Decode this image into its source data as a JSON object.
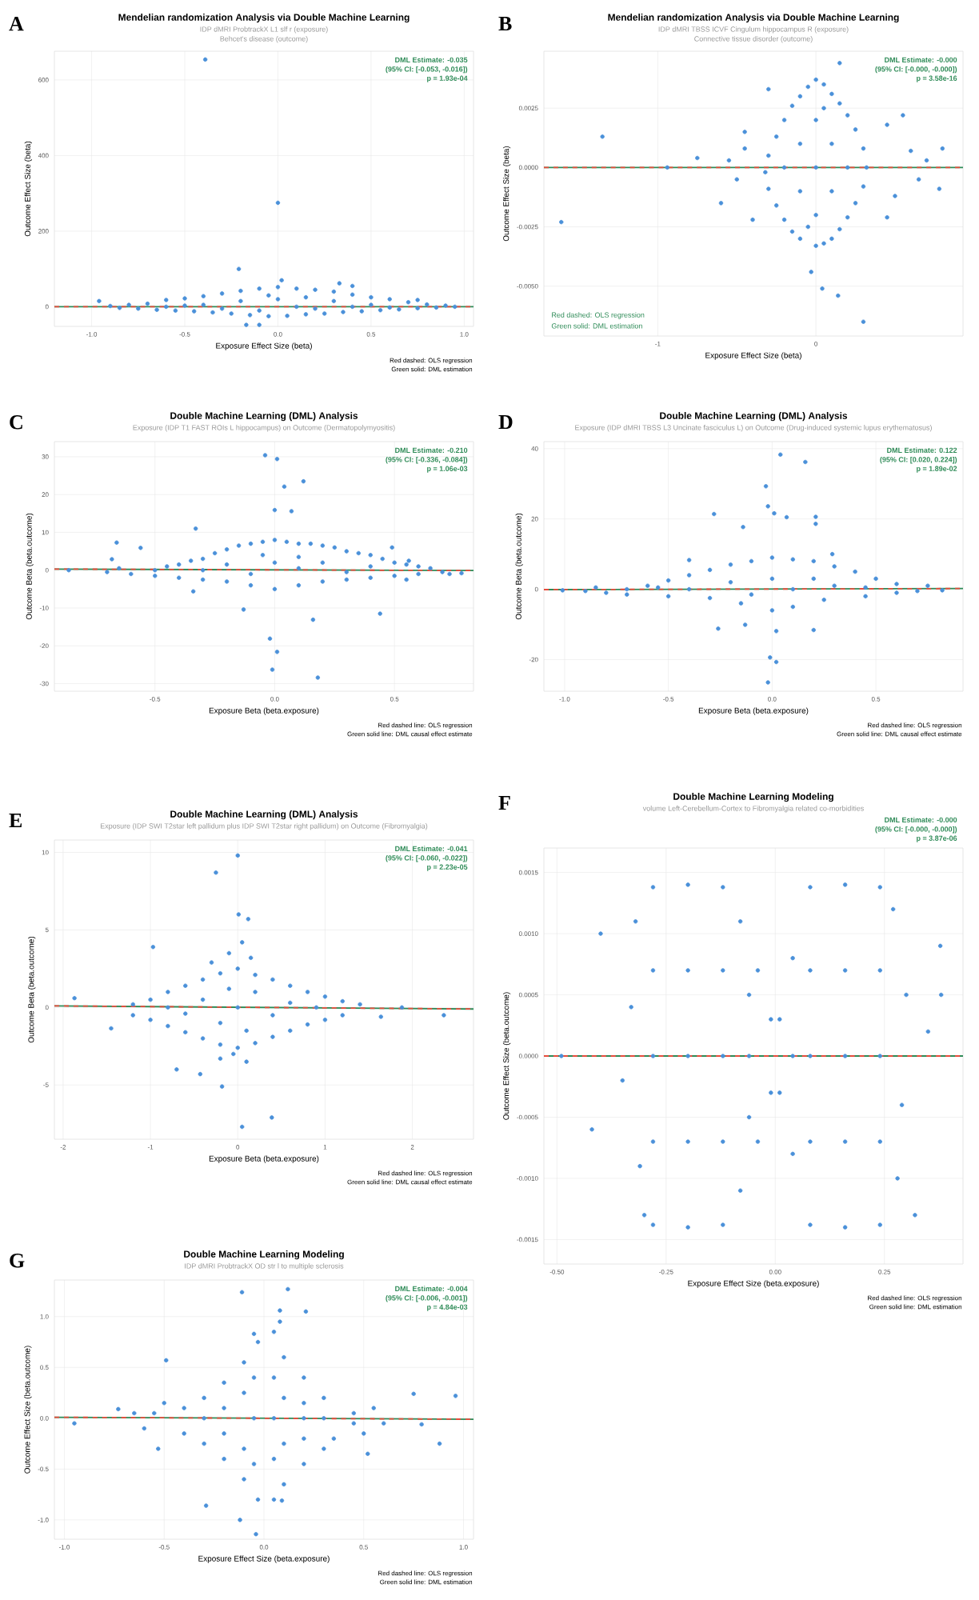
{
  "chart_data": [
    {
      "type": "scatter",
      "title": "Mendelian randomization Analysis via Double Machine Learning",
      "subtitle": "IDP dMRI ProbtrackX L1 slf r (exposure)",
      "xlabel": "Exposure Effect Size (beta)",
      "ylabel": "Outcome Effect Size (beta)",
      "annotations": [
        "A",
        "DML Estimate: -0.035",
        "(95% CI: [-0.053, -0.016])",
        "p = 1.93e-04",
        "Red dashed: OLS regression",
        "Green solid: DML estimation",
        "Behcet's disease (outcome)"
      ],
      "xlim": [
        -1.2,
        1.05
      ],
      "ylim": [
        -52,
        676
      ],
      "xticks": [
        {
          "value": -1,
          "label": "-1.0"
        },
        -0.5,
        {
          "value": 0,
          "label": "0.0"
        },
        0.5,
        {
          "value": 1,
          "label": "1.0"
        }
      ],
      "yticks": [
        0,
        200,
        400,
        600
      ],
      "grid": true,
      "series": [
        {
          "marker": "circle",
          "color": "#4a90d9",
          "x": [
            -0.9,
            -0.85,
            -0.8,
            -0.75,
            -0.7,
            -0.65,
            -0.6,
            -0.55,
            -0.5,
            -0.45,
            -0.4,
            -0.35,
            -0.3,
            -0.25,
            -0.2,
            -0.15,
            -0.1,
            -0.05,
            0.0,
            0.05,
            0.1,
            0.15,
            0.2,
            0.25,
            0.3,
            0.35,
            0.4,
            0.45,
            0.5,
            0.55,
            0.6,
            0.65,
            0.7,
            0.75,
            0.8,
            0.85,
            0.9,
            0.95,
            -0.6,
            -0.4,
            -0.3,
            -0.2,
            -0.1,
            0,
            0.1,
            0.2,
            0.3,
            0.4,
            0.5,
            -0.5,
            0.6,
            -0.05,
            0.15,
            -0.39,
            0.0,
            -0.21,
            0.02,
            0.33,
            0.4,
            -0.96,
            0.75,
            -0.17,
            -0.1
          ],
          "values": [
            2,
            -3,
            5,
            -5,
            8,
            -8,
            18,
            -10,
            22,
            -12,
            28,
            -15,
            35,
            -18,
            42,
            -22,
            48,
            -25,
            52,
            -24,
            48,
            -20,
            45,
            -18,
            40,
            -14,
            32,
            -12,
            25,
            -9,
            20,
            -7,
            12,
            -4,
            6,
            -2,
            3,
            0,
            0,
            5,
            -5,
            15,
            -10,
            20,
            0,
            -5,
            15,
            0,
            5,
            3,
            -2,
            30,
            25,
            654,
            275,
            100,
            70,
            62,
            55,
            15,
            18,
            -48,
            -48
          ]
        },
        {
          "type": "line",
          "line_style": "solid",
          "color": "#2e8b57",
          "x": [
            -1.2,
            1.05
          ],
          "values": [
            0,
            0
          ]
        },
        {
          "type": "line",
          "line_style": "dashed",
          "color": "#e74c3c",
          "x": [
            -1.2,
            1.05
          ],
          "values": [
            0,
            0
          ]
        }
      ]
    },
    {
      "type": "scatter",
      "title": "Mendelian randomization Analysis via Double Machine Learning",
      "subtitle": "IDP dMRI TBSS ICVF Cingulum hippocampus R (exposure)",
      "xlabel": "Exposure Effect Size (beta)",
      "ylabel": "Outcome Effect Size (beta)",
      "annotations": [
        "B",
        "DML Estimate: -0.000",
        "(95% CI: [-0.000, -0.000])",
        "p = 3.58e-16",
        "Red dashed: OLS regression",
        "Green solid: DML estimation",
        "Connective tissue disorder (outcome)"
      ],
      "xlim": [
        -1.72,
        0.93
      ],
      "ylim": [
        -0.0071,
        0.0049
      ],
      "xticks": [
        -1,
        0
      ],
      "yticks": [
        {
          "value": -0.005,
          "label": "-0.0050"
        },
        -0.0025,
        {
          "value": 0,
          "label": "0.0000"
        },
        0.0025
      ],
      "grid": true,
      "series": [
        {
          "marker": "circle",
          "color": "#4a90d9",
          "x": [
            0,
            0.05,
            -0.05,
            0.1,
            -0.1,
            0.15,
            -0.15,
            0.2,
            -0.2,
            0.25,
            -0.25,
            0.3,
            -0.3,
            0.32,
            -0.32,
            0.3,
            -0.3,
            0.25,
            -0.25,
            0.2,
            -0.2,
            0.15,
            -0.15,
            0.1,
            -0.1,
            0.05,
            0,
            0,
            0.1,
            -0.1,
            0.1,
            -0.1,
            0,
            0,
            0.2,
            -0.2,
            0.05,
            -0.05,
            -0.45,
            -0.5,
            -0.55,
            -0.6,
            -0.4,
            -0.45,
            0.45,
            0.5,
            0.6,
            0.65,
            0.55,
            0.7,
            0.45,
            -1.35,
            -1.61,
            0.15,
            0.3,
            0.14,
            0.04,
            -0.03,
            -0.3,
            0.8,
            0.78,
            -0.75,
            -0.94
          ],
          "values": [
            0.0037,
            0.0035,
            0.0034,
            0.0031,
            0.003,
            0.0027,
            0.0026,
            0.0022,
            0.002,
            0.0016,
            0.0013,
            0.0008,
            0.0005,
            0,
            -0.0002,
            -0.0008,
            -0.0009,
            -0.0015,
            -0.0016,
            -0.0021,
            -0.0022,
            -0.0026,
            -0.0027,
            -0.003,
            -0.003,
            -0.0032,
            -0.0033,
            0,
            0.001,
            0.001,
            -0.001,
            -0.001,
            0.002,
            -0.002,
            0,
            0,
            0.0025,
            -0.0025,
            0.0008,
            -0.0005,
            0.0003,
            -0.0015,
            -0.0022,
            0.0015,
            0.0018,
            -0.0012,
            0.0007,
            -0.0005,
            0.0022,
            0.0003,
            -0.0021,
            0.0013,
            -0.0023,
            0.0044,
            -0.0065,
            -0.0054,
            -0.0051,
            -0.0044,
            0.0033,
            0.0008,
            -0.0009,
            0.0004,
            0
          ]
        },
        {
          "type": "line",
          "line_style": "solid",
          "color": "#2e8b57",
          "x": [
            -1.72,
            0.93
          ],
          "values": [
            0,
            0
          ]
        },
        {
          "type": "line",
          "line_style": "dashed",
          "color": "#e74c3c",
          "x": [
            -1.72,
            0.93
          ],
          "values": [
            0,
            0
          ]
        }
      ]
    },
    {
      "type": "scatter",
      "title": "Double Machine Learning (DML) Analysis",
      "subtitle": "Exposure (IDP T1 FAST ROIs L hippocampus) on Outcome (Dermatopolymyositis)",
      "xlabel": "Exposure Beta (beta.exposure)",
      "ylabel": "Outcome Beta (beta.outcome)",
      "annotations": [
        "C",
        "DML Estimate: -0.210",
        "(95% CI: [-0.336, -0.084])",
        "p = 1.06e-03",
        "Red dashed line: OLS regression",
        "Green solid line: DML causal effect estimate"
      ],
      "xlim": [
        -0.92,
        0.83
      ],
      "ylim": [
        -32,
        34
      ],
      "xticks": [
        -0.5,
        {
          "value": 0,
          "label": "0.0"
        },
        0.5
      ],
      "yticks": [
        -30,
        -20,
        -10,
        0,
        10,
        20,
        30
      ],
      "grid": true,
      "series": [
        {
          "marker": "circle",
          "color": "#4a90d9",
          "x": [
            -0.5,
            -0.45,
            -0.4,
            -0.35,
            -0.3,
            -0.25,
            -0.2,
            -0.15,
            -0.1,
            -0.05,
            0,
            0.05,
            0.1,
            0.15,
            0.2,
            0.25,
            0.3,
            0.35,
            0.4,
            0.45,
            0.5,
            0.55,
            0.6,
            -0.5,
            -0.4,
            -0.3,
            -0.2,
            -0.1,
            0,
            0.1,
            0.2,
            0.3,
            0.4,
            0.5,
            0.6,
            -0.3,
            -0.2,
            -0.1,
            0,
            0.1,
            0.2,
            0.3,
            0.4,
            -0.05,
            0.1,
            -0.7,
            -0.6,
            -0.65,
            0.7,
            0.65,
            0.78,
            0.55,
            -0.04,
            0.01,
            0.04,
            0.12,
            0,
            0.07,
            -0.33,
            -0.66,
            -0.56,
            -0.68,
            -0.86,
            0.49,
            0.56,
            0.73,
            0.44,
            -0.13,
            -0.02,
            0.01,
            -0.01,
            0.18,
            0.16,
            -0.34
          ],
          "values": [
            0,
            1,
            1.5,
            2.5,
            3,
            4.5,
            5.5,
            6.5,
            7,
            7.5,
            8,
            7.5,
            7,
            7,
            6.5,
            6,
            5,
            4.5,
            4,
            3,
            2,
            1.5,
            1,
            -1.5,
            -2,
            -2.5,
            -3,
            -4,
            -5,
            -4,
            -3,
            -2.5,
            -2,
            -1.5,
            -1,
            0,
            1.5,
            -1,
            2,
            0.5,
            2,
            -0.5,
            1,
            4,
            3.5,
            -0.5,
            -1,
            0.5,
            -0.5,
            0.5,
            -0.8,
            -2.5,
            30.4,
            29.4,
            22.1,
            23.5,
            15.9,
            15.6,
            11,
            7.3,
            5.9,
            2.9,
            0,
            6,
            2.5,
            -1,
            -11.5,
            -10.4,
            -18.1,
            -21.6,
            -26.3,
            -28.4,
            -13.1,
            -5.6
          ]
        },
        {
          "type": "line",
          "line_style": "solid",
          "color": "#2e8b57",
          "x": [
            -0.92,
            0.83
          ],
          "values": [
            0.3,
            -0.1
          ]
        },
        {
          "type": "line",
          "line_style": "dashed",
          "color": "#e74c3c",
          "x": [
            -0.92,
            0.83
          ],
          "values": [
            0.3,
            -0.1
          ]
        }
      ]
    },
    {
      "type": "scatter",
      "title": "Double Machine Learning (DML) Analysis",
      "subtitle": "Exposure (IDP dMRI TBSS L3 Uncinate fasciculus L) on Outcome (Drug-induced systemic lupus erythematosus)",
      "xlabel": "Exposure Beta (beta.exposure)",
      "ylabel": "Outcome Beta (beta.outcome)",
      "annotations": [
        "D",
        "DML Estimate: 0.122",
        "(95% CI: [0.020, 0.224])",
        "p = 1.89e-02",
        "Red dashed line: OLS regression",
        "Green solid line: DML causal effect estimate"
      ],
      "xlim": [
        -1.1,
        0.92
      ],
      "ylim": [
        -29,
        42
      ],
      "xticks": [
        {
          "value": -1,
          "label": "-1.0"
        },
        -0.5,
        {
          "value": 0,
          "label": "0.0"
        },
        0.5
      ],
      "yticks": [
        -20,
        0,
        20,
        40
      ],
      "grid": true,
      "series": [
        {
          "marker": "circle",
          "color": "#4a90d9",
          "x": [
            -0.7,
            -0.6,
            -0.5,
            -0.4,
            -0.3,
            -0.2,
            -0.1,
            0,
            0.1,
            0.2,
            0.3,
            0.4,
            0.5,
            0.6,
            -0.7,
            -0.5,
            -0.3,
            -0.15,
            0,
            0.1,
            0.25,
            0.45,
            0.6,
            -0.4,
            -0.2,
            -0.1,
            0,
            0.1,
            0.2,
            0.3,
            0.45,
            -0.55,
            -0.9,
            -0.8,
            -0.85,
            0.7,
            0.75,
            0.04,
            0.16,
            -0.03,
            -0.02,
            -0.28,
            0.01,
            0.07,
            0.21,
            0.21,
            -0.14,
            -0.26,
            -0.13,
            0.02,
            0.2,
            -0.01,
            0.02,
            -0.02,
            -1.01,
            0.82,
            -0.4,
            0.29
          ],
          "values": [
            0,
            1,
            2.5,
            4,
            5.5,
            7,
            8,
            9,
            8.5,
            8,
            6.5,
            5,
            3,
            1.5,
            -1.5,
            -2,
            -2.5,
            -4,
            -6,
            -5,
            -3,
            -2,
            -1,
            0,
            2,
            -1.5,
            3,
            0,
            3,
            1,
            0.5,
            0.5,
            -0.5,
            -1,
            0.5,
            -0.5,
            1,
            38.3,
            36.2,
            29.3,
            23.6,
            21.4,
            21.6,
            20.5,
            20.6,
            18.6,
            17.7,
            -11.2,
            -10.1,
            -11.9,
            -11.6,
            -19.4,
            -20.7,
            -26.5,
            -0.3,
            -0.3,
            8.3,
            10
          ]
        },
        {
          "type": "line",
          "line_style": "solid",
          "color": "#2e8b57",
          "x": [
            -1.1,
            0.92
          ],
          "values": [
            -0.1,
            0.2
          ]
        },
        {
          "type": "line",
          "line_style": "dashed",
          "color": "#e74c3c",
          "x": [
            -1.1,
            0.92
          ],
          "values": [
            -0.1,
            0.2
          ]
        }
      ]
    },
    {
      "type": "scatter",
      "title": "Double Machine Learning (DML) Analysis",
      "subtitle": "Exposure (IDP SWI T2star left pallidum plus IDP SWI T2star right pallidum) on Outcome (Fibromyalgia)",
      "xlabel": "Exposure Beta (beta.exposure)",
      "ylabel": "Outcome Beta (beta.outcome)",
      "annotations": [
        "E",
        "DML Estimate: -0.041",
        "(95% CI: [-0.060, -0.022])",
        "p = 2.23e-05",
        "Red dashed line: OLS regression",
        "Green solid line: DML causal effect estimate"
      ],
      "xlim": [
        -2.1,
        2.7
      ],
      "ylim": [
        -8.5,
        10.8
      ],
      "xticks": [
        -2,
        -1,
        0,
        1,
        2
      ],
      "yticks": [
        -5,
        0,
        5,
        10
      ],
      "grid": true,
      "series": [
        {
          "marker": "circle",
          "color": "#4a90d9",
          "x": [
            -1.2,
            -1.0,
            -0.8,
            -0.6,
            -0.4,
            -0.2,
            0,
            0.2,
            0.4,
            0.6,
            0.8,
            1.0,
            1.2,
            1.4,
            -0.1,
            0.05,
            0.15,
            -0.3,
            -1.2,
            -1.0,
            -0.8,
            -0.6,
            -0.4,
            -0.2,
            0,
            0.2,
            0.4,
            0.6,
            0.8,
            1.0,
            1.2,
            -0.2,
            0.1,
            -0.05,
            -0.8,
            -0.4,
            -0.2,
            0,
            0.2,
            0.4,
            0.6,
            0.9,
            -0.6,
            0.1,
            -0.1,
            0,
            -0.25,
            0.01,
            0.12,
            -0.97,
            -1.87,
            1.64,
            2.36,
            1.88,
            -0.18,
            0.05,
            0.39,
            -1.45,
            -0.7,
            -0.43
          ],
          "values": [
            0.2,
            0.5,
            1.0,
            1.4,
            1.8,
            2.2,
            2.5,
            2.1,
            1.8,
            1.4,
            1.0,
            0.7,
            0.4,
            0.2,
            3.5,
            4.2,
            3.2,
            2.9,
            -0.5,
            -0.8,
            -1.2,
            -1.6,
            -2.0,
            -2.4,
            -2.6,
            -2.3,
            -1.9,
            -1.5,
            -1.1,
            -0.8,
            -0.5,
            -3.3,
            -3.5,
            -3,
            0,
            0.5,
            -1,
            0,
            1,
            -0.5,
            0.3,
            0,
            -0.4,
            -1.5,
            1.2,
            9.8,
            8.7,
            6.0,
            5.7,
            3.9,
            0.6,
            -0.6,
            -0.5,
            0,
            -5.1,
            -7.7,
            -7.1,
            -1.35,
            -4,
            -4.3
          ]
        },
        {
          "type": "line",
          "line_style": "solid",
          "color": "#2e8b57",
          "x": [
            -2.1,
            2.7
          ],
          "values": [
            0.1,
            -0.1
          ]
        },
        {
          "type": "line",
          "line_style": "dashed",
          "color": "#e74c3c",
          "x": [
            -2.1,
            2.7
          ],
          "values": [
            0.1,
            -0.1
          ]
        }
      ]
    },
    {
      "type": "scatter",
      "title": "Double Machine Learning Modeling",
      "subtitle": "volume Left-Cerebellum-Cortex to Fibromyalgia related co-morbidities",
      "xlabel": "Exposure Effect Size (beta.exposure)",
      "ylabel": "Outcome Effect Size (beta.outcome)",
      "annotations": [
        "F",
        "DML Estimate: -0.000",
        "(95% CI: [-0.000, -0.000])",
        "p = 3.87e-06",
        "Red dashed line: OLS regression",
        "Green solid line: DML estimation"
      ],
      "xlim": [
        -0.53,
        0.43
      ],
      "ylim": [
        -0.0017,
        0.0017
      ],
      "xticks": [
        {
          "value": -0.5,
          "label": "-0.50"
        },
        -0.25,
        {
          "value": 0,
          "label": "0.00"
        },
        0.25
      ],
      "yticks": [
        -0.0015,
        {
          "value": -0.001,
          "label": "-0.0010"
        },
        -0.0005,
        {
          "value": 0,
          "label": "0.0000"
        },
        0.0005,
        {
          "value": 0.001,
          "label": "0.0010"
        },
        0.0015
      ],
      "grid": true,
      "series": [
        {
          "marker": "circle",
          "color": "#4a90d9",
          "x": [
            -0.28,
            -0.28,
            -0.2,
            -0.2,
            -0.12,
            -0.12,
            -0.08,
            -0.08,
            -0.04,
            -0.04,
            -0.01,
            -0.01,
            -0.28,
            -0.28,
            -0.28,
            -0.2,
            -0.2,
            -0.2,
            -0.12,
            -0.12,
            -0.12,
            -0.06,
            -0.06,
            -0.06,
            0.01,
            0.01,
            0.04,
            0.04,
            0.08,
            0.08,
            0.16,
            0.16,
            0.24,
            0.24,
            0.04,
            0.08,
            0.08,
            0.08,
            0.16,
            0.16,
            0.16,
            0.24,
            0.24,
            0.24,
            -0.32,
            -0.31,
            -0.33,
            -0.3,
            -0.35,
            0.27,
            0.28,
            0.3,
            0.29,
            0.32,
            0.35,
            0.378,
            0.38,
            -0.49,
            -0.4,
            -0.42
          ],
          "values": [
            0.00138,
            -0.00138,
            0.0014,
            -0.0014,
            0.00138,
            -0.00138,
            0.0011,
            -0.0011,
            0.0007,
            -0.0007,
            0.0003,
            -0.0003,
            0,
            0.0007,
            -0.0007,
            0,
            0.0007,
            -0.0007,
            0,
            0.0007,
            -0.0007,
            0,
            0.0005,
            -0.0005,
            0.0003,
            -0.0003,
            0.0008,
            -0.0008,
            0.00138,
            -0.00138,
            0.0014,
            -0.0014,
            0.00138,
            -0.00138,
            0,
            0,
            0.0007,
            -0.0007,
            0,
            0.0007,
            -0.0007,
            0,
            0.0007,
            -0.0007,
            0.0011,
            -0.0009,
            0.0004,
            -0.0013,
            -0.0002,
            0.0012,
            -0.001,
            0.0005,
            -0.0004,
            -0.0013,
            0.0002,
            0.0009,
            0.0005,
            0,
            0.001,
            -0.0006
          ]
        },
        {
          "type": "line",
          "line_style": "solid",
          "color": "#2e8b57",
          "x": [
            -0.53,
            0.43
          ],
          "values": [
            0,
            0
          ]
        },
        {
          "type": "line",
          "line_style": "dashed",
          "color": "#e74c3c",
          "x": [
            -0.53,
            0.43
          ],
          "values": [
            0,
            0
          ]
        }
      ]
    },
    {
      "type": "scatter",
      "title": "Double Machine Learning Modeling",
      "subtitle": "IDP dMRI ProbtrackX OD str l to multiple sclerosis",
      "xlabel": "Exposure Effect Size (beta.exposure)",
      "ylabel": "Outcome Effect Size (beta.outcome)",
      "annotations": [
        "G",
        "DML Estimate: -0.004",
        "(95% CI: [-0.006, -0.001])",
        "p = 4.84e-03",
        "Red dashed line: OLS regression",
        "Green solid line: DML estimation"
      ],
      "xlim": [
        -1.05,
        1.05
      ],
      "ylim": [
        -1.19,
        1.36
      ],
      "xticks": [
        {
          "value": -1,
          "label": "-1.0"
        },
        -0.5,
        {
          "value": 0,
          "label": "0.0"
        },
        0.5,
        {
          "value": 1,
          "label": "1.0"
        }
      ],
      "yticks": [
        {
          "value": -1,
          "label": "-1.0"
        },
        -0.5,
        {
          "value": 0,
          "label": "0.0"
        },
        0.5,
        {
          "value": 1,
          "label": "1.0"
        }
      ],
      "grid": true,
      "series": [
        {
          "marker": "circle",
          "color": "#4a90d9",
          "x": [
            -0.4,
            -0.3,
            -0.2,
            -0.1,
            -0.03,
            -0.05,
            -0.4,
            -0.3,
            -0.2,
            -0.1,
            -0.03,
            -0.3,
            -0.2,
            -0.2,
            -0.1,
            -0.1,
            -0.05,
            -0.05,
            -0.05,
            0.05,
            0.08,
            0.1,
            0.2,
            0.3,
            0.45,
            0.05,
            0.1,
            0.2,
            0.3,
            0.35,
            0.45,
            0.05,
            0.05,
            0.05,
            0.1,
            0.1,
            0.2,
            0.2,
            0.2,
            0.3,
            -0.55,
            -0.6,
            -0.5,
            0.55,
            0.6,
            0.5,
            -0.65,
            -0.11,
            0.12,
            0.08,
            0.21,
            -0.95,
            -0.73,
            -0.49,
            0.75,
            0.96,
            0.88,
            0.79,
            -0.04,
            -0.12,
            -0.29,
            0.09,
            0.52,
            -0.53
          ],
          "values": [
            0.1,
            0.2,
            0.35,
            0.55,
            0.75,
            0.83,
            -0.15,
            -0.25,
            -0.4,
            -0.6,
            -0.8,
            0,
            0.1,
            -0.15,
            0.25,
            -0.3,
            0,
            0.4,
            -0.45,
            0.85,
            0.95,
            0.6,
            0.4,
            0.2,
            0.05,
            -0.8,
            -0.65,
            -0.45,
            -0.3,
            -0.2,
            -0.05,
            0,
            0.4,
            -0.4,
            0.2,
            -0.25,
            0,
            0.15,
            -0.2,
            0,
            0.05,
            -0.1,
            0.15,
            0.1,
            -0.05,
            -0.15,
            0.05,
            1.24,
            1.27,
            1.06,
            1.05,
            -0.05,
            0.09,
            0.57,
            0.24,
            0.22,
            -0.25,
            -0.06,
            -1.14,
            -1.0,
            -0.86,
            -0.81,
            -0.35,
            -0.3
          ]
        },
        {
          "type": "line",
          "line_style": "solid",
          "color": "#2e8b57",
          "x": [
            -1.05,
            1.05
          ],
          "values": [
            0.01,
            -0.01
          ]
        },
        {
          "type": "line",
          "line_style": "dashed",
          "color": "#e74c3c",
          "x": [
            -1.05,
            1.05
          ],
          "values": [
            0.01,
            -0.01
          ]
        }
      ]
    }
  ]
}
